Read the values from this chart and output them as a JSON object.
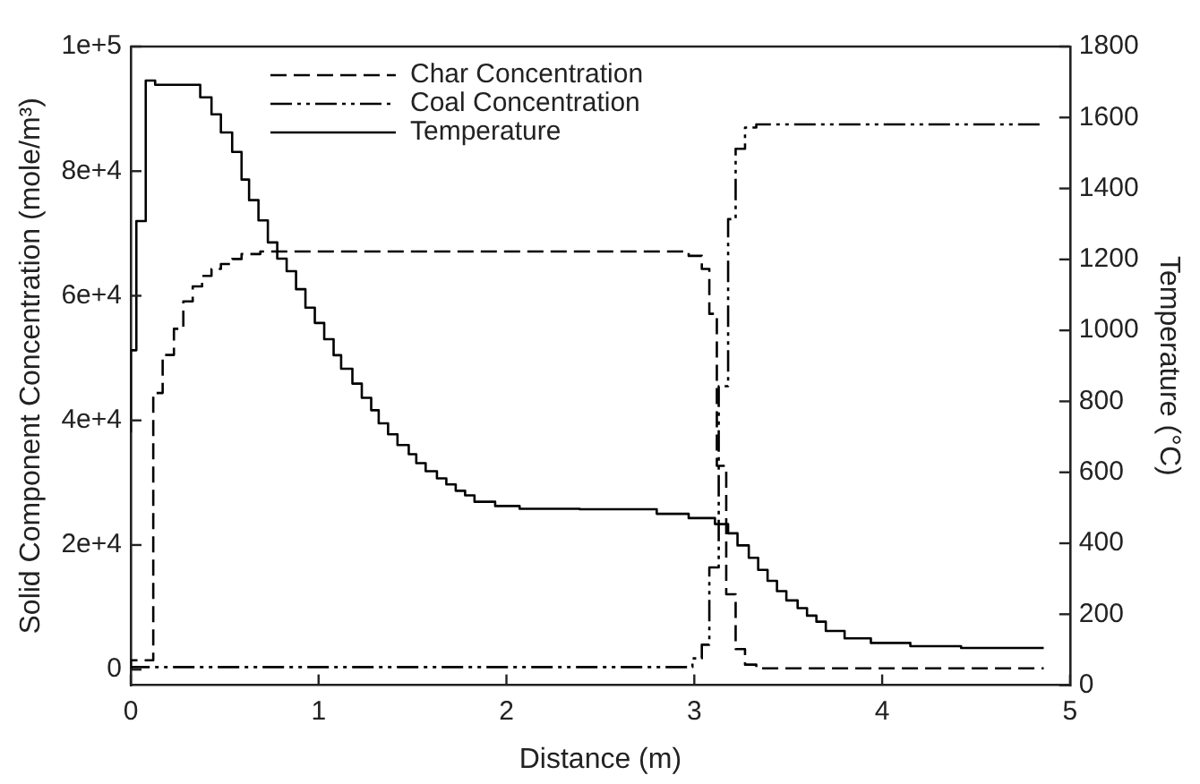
{
  "chart_data": {
    "type": "step",
    "xlabel": "Distance (m)",
    "ylabel": "Solid Component Concentration (mole/m³)",
    "y2label": "Temperature (°C)",
    "xlim": [
      0,
      5
    ],
    "xticks": [
      0,
      1,
      2,
      3,
      4,
      5
    ],
    "ylim": [
      -2500,
      100000
    ],
    "yticks": [
      {
        "value": 0,
        "label": "0"
      },
      {
        "value": 20000,
        "label": "2e+4"
      },
      {
        "value": 40000,
        "label": "4e+4"
      },
      {
        "value": 60000,
        "label": "6e+4"
      },
      {
        "value": 80000,
        "label": "8e+4"
      },
      {
        "value": 100000,
        "label": "1e+5"
      }
    ],
    "y2lim": [
      0,
      1800
    ],
    "y2ticks": [
      0,
      200,
      400,
      600,
      800,
      1000,
      1200,
      1400,
      1600,
      1800
    ],
    "grid": false,
    "legend": "top left",
    "marker": "none",
    "series": [
      {
        "name": "Char Concentration",
        "color": "#000000",
        "line_style": "dashed",
        "x": [
          0,
          0.12,
          0.17,
          0.23,
          0.28,
          0.33,
          0.38,
          0.43,
          0.48,
          0.54,
          0.59,
          0.69,
          0.83,
          2.97,
          3.04,
          3.08,
          3.12,
          3.17,
          3.22,
          3.27,
          3.33,
          3.42,
          4.86
        ],
        "values": [
          0,
          1500,
          44400,
          50500,
          54700,
          59100,
          61500,
          63200,
          64300,
          65100,
          65900,
          66700,
          67100,
          67100,
          66400,
          64300,
          57100,
          32700,
          12100,
          3300,
          800,
          200,
          200
        ]
      },
      {
        "name": "Coal Concentration",
        "color": "#000000",
        "line_style": "dashdot",
        "x": [
          0,
          2.99,
          3.04,
          3.08,
          3.13,
          3.18,
          3.22,
          3.27,
          3.33,
          3.39,
          4.86
        ],
        "values": [
          0,
          400,
          1800,
          4000,
          16400,
          45500,
          72300,
          83600,
          87000,
          87500,
          87500
        ]
      },
      {
        "name": "Temperature",
        "color": "#000000",
        "line_style": "solid",
        "axis": "y2",
        "x": [
          0,
          0.03,
          0.08,
          0.13,
          0.37,
          0.43,
          0.48,
          0.54,
          0.59,
          0.63,
          0.68,
          0.73,
          0.78,
          0.83,
          0.88,
          0.93,
          0.98,
          1.03,
          1.08,
          1.12,
          1.18,
          1.23,
          1.28,
          1.32,
          1.37,
          1.42,
          1.48,
          1.52,
          1.57,
          1.63,
          1.68,
          1.73,
          1.78,
          1.83,
          1.94,
          2.07,
          2.39,
          2.8,
          2.97,
          3.11,
          3.18,
          3.23,
          3.29,
          3.34,
          3.39,
          3.44,
          3.49,
          3.55,
          3.6,
          3.65,
          3.7,
          3.8,
          3.94,
          4.15,
          4.42,
          4.86
        ],
        "values": [
          712,
          944,
          1308,
          1704,
          1692,
          1657,
          1609,
          1558,
          1503,
          1425,
          1367,
          1310,
          1248,
          1202,
          1167,
          1116,
          1064,
          1021,
          975,
          930,
          892,
          850,
          810,
          775,
          738,
          707,
          677,
          651,
          626,
          603,
          583,
          566,
          548,
          535,
          517,
          505,
          497,
          496,
          483,
          471,
          454,
          428,
          394,
          359,
          325,
          294,
          265,
          239,
          217,
          196,
          179,
          153,
          132,
          119,
          110,
          105
        ]
      }
    ]
  }
}
